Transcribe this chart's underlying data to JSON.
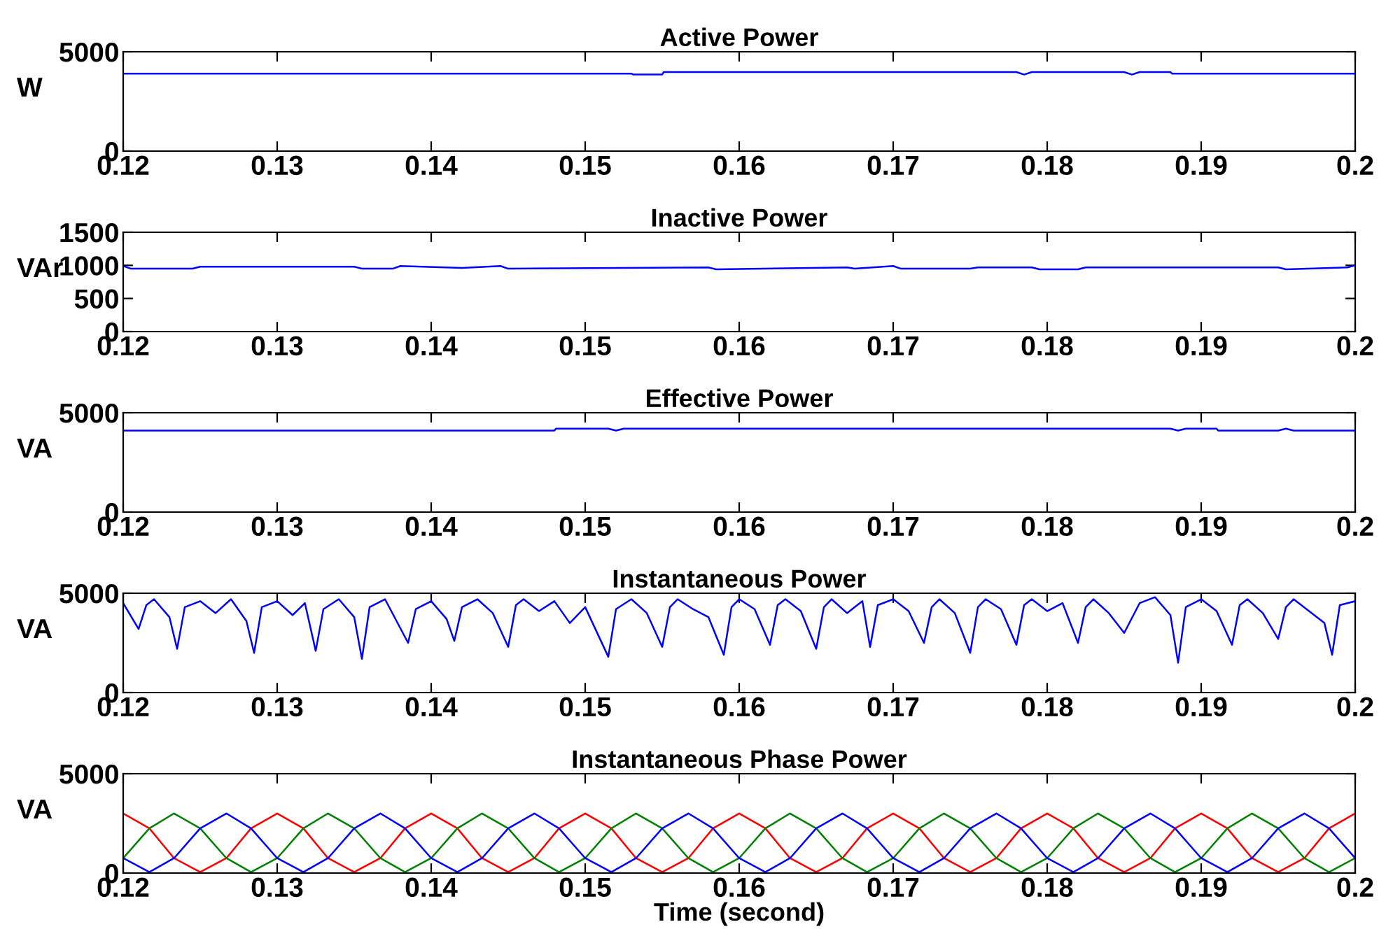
{
  "chart_data": [
    {
      "type": "line",
      "title": "Active Power",
      "ylabel": "W",
      "xlim": [
        0.12,
        0.2
      ],
      "xticks": [
        0.12,
        0.13,
        0.14,
        0.15,
        0.16,
        0.17,
        0.18,
        0.19,
        0.2
      ],
      "ylim": [
        0,
        5000
      ],
      "yticks": [
        0,
        5000
      ],
      "series": [
        {
          "color": "#0000ff",
          "x": [
            0.12,
            0.153,
            0.1531,
            0.155,
            0.1551,
            0.178,
            0.1785,
            0.179,
            0.185,
            0.1855,
            0.186,
            0.188,
            0.1881,
            0.2
          ],
          "values": [
            3900,
            3900,
            3860,
            3860,
            3980,
            3980,
            3850,
            3980,
            3980,
            3850,
            3980,
            3980,
            3900,
            3900
          ]
        }
      ]
    },
    {
      "type": "line",
      "title": "Inactive Power",
      "ylabel": "VAr",
      "xlim": [
        0.12,
        0.2
      ],
      "xticks": [
        0.12,
        0.13,
        0.14,
        0.15,
        0.16,
        0.17,
        0.18,
        0.19,
        0.2
      ],
      "ylim": [
        0,
        1500
      ],
      "yticks": [
        0,
        500,
        1000,
        1500
      ],
      "series": [
        {
          "color": "#0000ff",
          "x": [
            0.12,
            0.1205,
            0.1245,
            0.125,
            0.135,
            0.1355,
            0.1375,
            0.138,
            0.142,
            0.1445,
            0.145,
            0.158,
            0.1585,
            0.167,
            0.1675,
            0.17,
            0.1705,
            0.175,
            0.1755,
            0.179,
            0.1795,
            0.182,
            0.1825,
            0.195,
            0.1955,
            0.1995,
            0.2
          ],
          "values": [
            990,
            950,
            950,
            980,
            980,
            950,
            950,
            990,
            960,
            990,
            950,
            970,
            940,
            970,
            950,
            990,
            950,
            950,
            970,
            970,
            940,
            940,
            970,
            970,
            940,
            970,
            1000
          ]
        }
      ]
    },
    {
      "type": "line",
      "title": "Effective Power",
      "ylabel": "VA",
      "xlim": [
        0.12,
        0.2
      ],
      "xticks": [
        0.12,
        0.13,
        0.14,
        0.15,
        0.16,
        0.17,
        0.18,
        0.19,
        0.2
      ],
      "ylim": [
        0,
        5000
      ],
      "yticks": [
        0,
        5000
      ],
      "series": [
        {
          "color": "#0000ff",
          "x": [
            0.12,
            0.148,
            0.1481,
            0.1515,
            0.152,
            0.1525,
            0.188,
            0.1885,
            0.189,
            0.191,
            0.1911,
            0.195,
            0.1955,
            0.196,
            0.2
          ],
          "values": [
            4100,
            4100,
            4200,
            4200,
            4100,
            4200,
            4200,
            4100,
            4200,
            4200,
            4100,
            4100,
            4200,
            4100,
            4100
          ]
        }
      ]
    },
    {
      "type": "line",
      "title": "Instantaneous Power",
      "ylabel": "VA",
      "xlim": [
        0.12,
        0.2
      ],
      "xticks": [
        0.12,
        0.13,
        0.14,
        0.15,
        0.16,
        0.17,
        0.18,
        0.19,
        0.2
      ],
      "ylim": [
        0,
        5000
      ],
      "yticks": [
        0,
        5000
      ],
      "series": [
        {
          "color": "#0000ff",
          "x": [
            0.12,
            0.121,
            0.1215,
            0.122,
            0.123,
            0.1235,
            0.124,
            0.125,
            0.126,
            0.127,
            0.128,
            0.1285,
            0.129,
            0.13,
            0.131,
            0.1318,
            0.1325,
            0.133,
            0.134,
            0.135,
            0.1355,
            0.136,
            0.137,
            0.1385,
            0.139,
            0.14,
            0.141,
            0.1415,
            0.142,
            0.143,
            0.144,
            0.145,
            0.1455,
            0.146,
            0.147,
            0.148,
            0.149,
            0.15,
            0.1515,
            0.152,
            0.153,
            0.154,
            0.155,
            0.1555,
            0.156,
            0.157,
            0.158,
            0.159,
            0.1595,
            0.16,
            0.161,
            0.162,
            0.1625,
            0.163,
            0.164,
            0.165,
            0.1655,
            0.166,
            0.167,
            0.168,
            0.1685,
            0.169,
            0.17,
            0.171,
            0.172,
            0.1725,
            0.173,
            0.174,
            0.175,
            0.1755,
            0.176,
            0.177,
            0.178,
            0.1785,
            0.179,
            0.18,
            0.181,
            0.182,
            0.1825,
            0.183,
            0.184,
            0.185,
            0.186,
            0.187,
            0.188,
            0.1885,
            0.189,
            0.19,
            0.191,
            0.192,
            0.1925,
            0.193,
            0.194,
            0.195,
            0.1955,
            0.196,
            0.197,
            0.198,
            0.1985,
            0.199,
            0.2
          ],
          "values": [
            4500,
            3200,
            4400,
            4700,
            3800,
            2200,
            4300,
            4600,
            4000,
            4700,
            3600,
            2000,
            4300,
            4600,
            3900,
            4500,
            2100,
            4200,
            4700,
            3800,
            1700,
            4300,
            4700,
            2500,
            4200,
            4600,
            3700,
            2600,
            4300,
            4700,
            4000,
            2300,
            4400,
            4700,
            4100,
            4600,
            3500,
            4300,
            1800,
            4200,
            4700,
            4000,
            2300,
            4300,
            4700,
            4200,
            3800,
            1900,
            4300,
            4700,
            4200,
            2400,
            4400,
            4700,
            4100,
            2200,
            4300,
            4700,
            4000,
            4600,
            2300,
            4400,
            4700,
            4100,
            2500,
            4300,
            4700,
            4000,
            2000,
            4300,
            4700,
            4200,
            2400,
            4400,
            4700,
            4100,
            4500,
            2500,
            4300,
            4700,
            4000,
            3000,
            4500,
            4800,
            3900,
            1500,
            4300,
            4700,
            4100,
            2400,
            4400,
            4700,
            4000,
            2700,
            4300,
            4700,
            4100,
            3500,
            1900,
            4400,
            4600
          ]
        }
      ]
    },
    {
      "type": "line",
      "title": "Instantaneous Phase Power",
      "ylabel": "VA",
      "xlabel": "Time (second)",
      "xlim": [
        0.12,
        0.2
      ],
      "xticks": [
        0.12,
        0.13,
        0.14,
        0.15,
        0.16,
        0.17,
        0.18,
        0.19,
        0.2
      ],
      "ylim": [
        0,
        5000
      ],
      "yticks": [
        0,
        5000
      ],
      "x": [
        0.12,
        0.1217,
        0.1233,
        0.125,
        0.1267,
        0.1283,
        0.13,
        0.1317,
        0.1333,
        0.135,
        0.1367,
        0.1383,
        0.14,
        0.1417,
        0.1433,
        0.145,
        0.1467,
        0.1483,
        0.15,
        0.1517,
        0.1533,
        0.155,
        0.1567,
        0.1583,
        0.16,
        0.1617,
        0.1633,
        0.165,
        0.1667,
        0.1683,
        0.17,
        0.1717,
        0.1733,
        0.175,
        0.1767,
        0.1783,
        0.18,
        0.1817,
        0.1833,
        0.185,
        0.1867,
        0.1883,
        0.19,
        0.1917,
        0.1933,
        0.195,
        0.1967,
        0.1983,
        0.2
      ],
      "series": [
        {
          "color": "#ff0000",
          "values": [
            3000,
            2250,
            750,
            50,
            750,
            2250,
            3000,
            2250,
            750,
            50,
            750,
            2250,
            3000,
            2250,
            750,
            50,
            750,
            2250,
            3000,
            2250,
            750,
            50,
            750,
            2250,
            3000,
            2250,
            750,
            50,
            750,
            2250,
            3000,
            2250,
            750,
            50,
            750,
            2250,
            3000,
            2250,
            750,
            50,
            750,
            2250,
            3000,
            2250,
            750,
            50,
            750,
            2250,
            3000
          ]
        },
        {
          "color": "#008000",
          "values": [
            750,
            2250,
            3000,
            2250,
            750,
            50,
            750,
            2250,
            3000,
            2250,
            750,
            50,
            750,
            2250,
            3000,
            2250,
            750,
            50,
            750,
            2250,
            3000,
            2250,
            750,
            50,
            750,
            2250,
            3000,
            2250,
            750,
            50,
            750,
            2250,
            3000,
            2250,
            750,
            50,
            750,
            2250,
            3000,
            2250,
            750,
            50,
            750,
            2250,
            3000,
            2250,
            750,
            50,
            750
          ]
        },
        {
          "color": "#0000ff",
          "values": [
            750,
            50,
            750,
            2250,
            3000,
            2250,
            750,
            50,
            750,
            2250,
            3000,
            2250,
            750,
            50,
            750,
            2250,
            3000,
            2250,
            750,
            50,
            750,
            2250,
            3000,
            2250,
            750,
            50,
            750,
            2250,
            3000,
            2250,
            750,
            50,
            750,
            2250,
            3000,
            2250,
            750,
            50,
            750,
            2250,
            3000,
            2250,
            750,
            50,
            750,
            2250,
            3000,
            2250,
            750
          ]
        }
      ]
    }
  ]
}
